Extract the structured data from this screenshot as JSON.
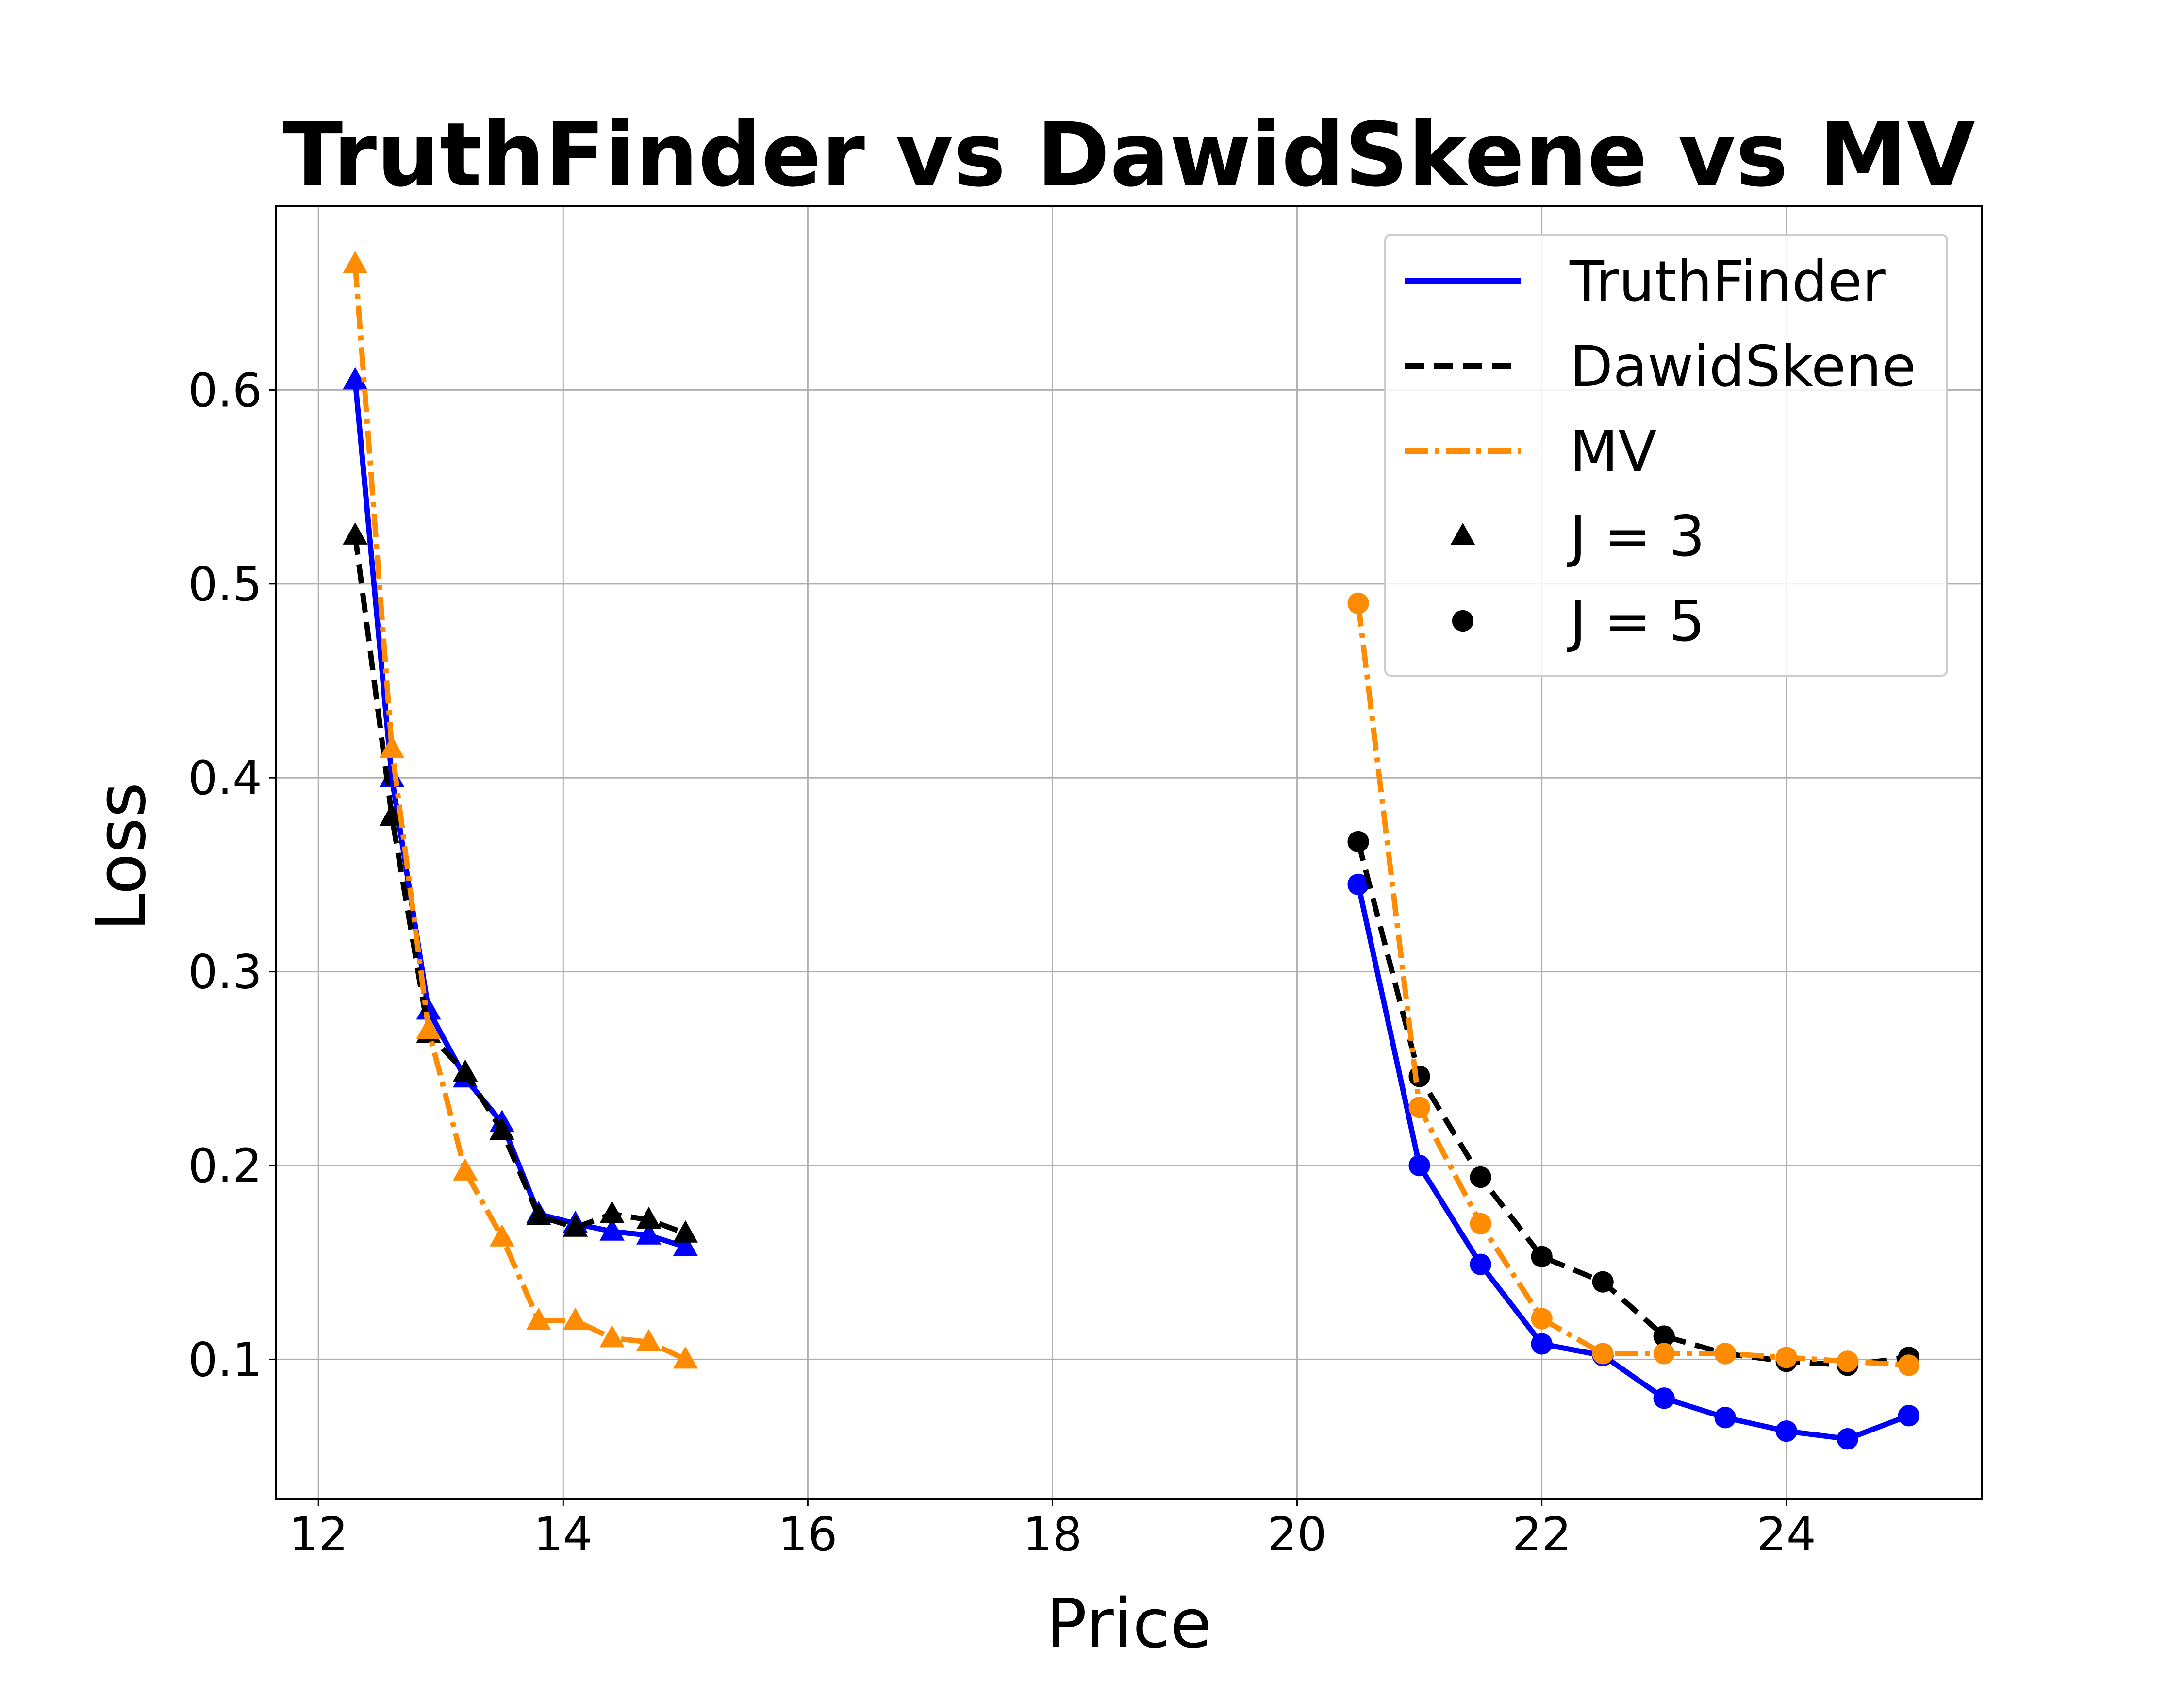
{
  "chart_data": {
    "type": "line",
    "title": "TruthFinder vs DawidSkene vs MV",
    "xlabel": "Price",
    "ylabel": "Loss",
    "xlim": [
      11.65,
      25.6
    ],
    "ylim": [
      0.028,
      0.695
    ],
    "xticks": [
      12,
      14,
      16,
      18,
      20,
      22,
      24
    ],
    "xtick_labels": [
      "12",
      "14",
      "16",
      "18",
      "20",
      "22",
      "24"
    ],
    "yticks": [
      0.1,
      0.2,
      0.3,
      0.4,
      0.5,
      0.6
    ],
    "ytick_labels": [
      "0.1",
      "0.2",
      "0.3",
      "0.4",
      "0.5",
      "0.6"
    ],
    "grid": true,
    "legend_position": "top-right",
    "series": [
      {
        "name": "TruthFinder",
        "group": "J = 3",
        "color": "#0000ff",
        "style": "solid",
        "marker": "triangle",
        "x": [
          12.3,
          12.6,
          12.9,
          13.2,
          13.5,
          13.8,
          14.1,
          14.4,
          14.7,
          15.0
        ],
        "y": [
          0.605,
          0.4,
          0.28,
          0.245,
          0.222,
          0.175,
          0.17,
          0.166,
          0.164,
          0.158
        ]
      },
      {
        "name": "DawidSkene",
        "group": "J = 3",
        "color": "#000000",
        "style": "dashed",
        "marker": "triangle",
        "x": [
          12.3,
          12.6,
          12.9,
          13.2,
          13.5,
          13.8,
          14.1,
          14.4,
          14.7,
          15.0
        ],
        "y": [
          0.525,
          0.38,
          0.268,
          0.248,
          0.218,
          0.174,
          0.168,
          0.175,
          0.172,
          0.165
        ]
      },
      {
        "name": "MV",
        "group": "J = 3",
        "color": "#ff8c00",
        "style": "dashdot",
        "marker": "triangle",
        "x": [
          12.3,
          12.6,
          12.9,
          13.2,
          13.5,
          13.8,
          14.1,
          14.4,
          14.7,
          15.0
        ],
        "y": [
          0.665,
          0.415,
          0.27,
          0.197,
          0.163,
          0.12,
          0.12,
          0.111,
          0.109,
          0.1
        ]
      },
      {
        "name": "TruthFinder",
        "group": "J = 5",
        "color": "#0000ff",
        "style": "solid",
        "marker": "circle",
        "x": [
          20.5,
          21.0,
          21.5,
          22.0,
          22.5,
          23.0,
          23.5,
          24.0,
          24.5,
          25.0
        ],
        "y": [
          0.345,
          0.2,
          0.149,
          0.108,
          0.102,
          0.08,
          0.07,
          0.063,
          0.059,
          0.071
        ]
      },
      {
        "name": "DawidSkene",
        "group": "J = 5",
        "color": "#000000",
        "style": "dashed",
        "marker": "circle",
        "x": [
          20.5,
          21.0,
          21.5,
          22.0,
          22.5,
          23.0,
          23.5,
          24.0,
          24.5,
          25.0
        ],
        "y": [
          0.367,
          0.246,
          0.194,
          0.153,
          0.14,
          0.112,
          0.103,
          0.099,
          0.097,
          0.101
        ]
      },
      {
        "name": "MV",
        "group": "J = 5",
        "color": "#ff8c00",
        "style": "dashdot",
        "marker": "circle",
        "x": [
          20.5,
          21.0,
          21.5,
          22.0,
          22.5,
          23.0,
          23.5,
          24.0,
          24.5,
          25.0
        ],
        "y": [
          0.49,
          0.23,
          0.17,
          0.121,
          0.103,
          0.103,
          0.103,
          0.101,
          0.099,
          0.097
        ]
      }
    ],
    "legend": [
      {
        "label": "TruthFinder",
        "kind": "line",
        "color": "#0000ff",
        "style": "solid"
      },
      {
        "label": "DawidSkene",
        "kind": "line",
        "color": "#000000",
        "style": "dashed"
      },
      {
        "label": "MV",
        "kind": "line",
        "color": "#ff8c00",
        "style": "dashdot"
      },
      {
        "label": "J = 3",
        "kind": "marker",
        "color": "#000000",
        "marker": "triangle"
      },
      {
        "label": "J = 5",
        "kind": "marker",
        "color": "#000000",
        "marker": "circle"
      }
    ]
  }
}
